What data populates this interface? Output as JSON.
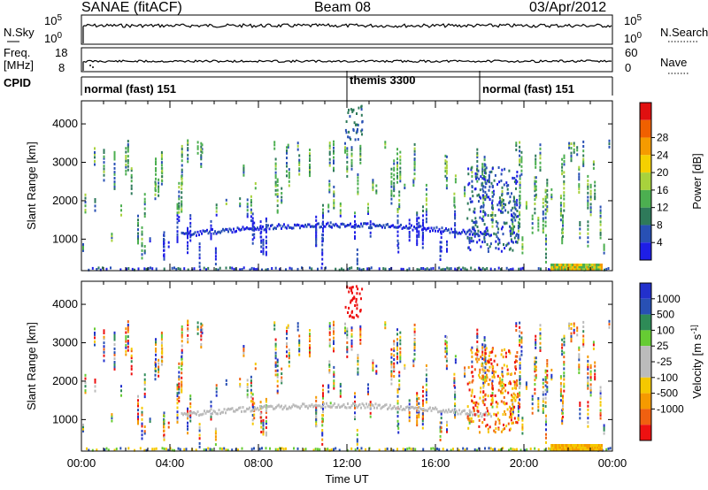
{
  "header": {
    "title": "SANAE (fitACF)",
    "beam": "Beam 08",
    "date": "03/Apr/2012"
  },
  "panels": {
    "nsky": {
      "left_label": "N.Sky",
      "left_ticks": [
        "10^5",
        "10^0"
      ],
      "right_ticks": [
        "10^5",
        "10^0"
      ],
      "right_label": "N.Search"
    },
    "freq": {
      "left_label_1": "Freq.",
      "left_label_2": "[MHz]",
      "left_ticks": [
        "18",
        "8"
      ],
      "right_ticks": [
        "60",
        "0"
      ],
      "right_label": "Nave"
    },
    "cpid": {
      "label": "CPID",
      "segments": [
        {
          "label": "normal (fast) 151",
          "start": 0
        },
        {
          "label": "themis 3300",
          "start": 12
        },
        {
          "label": "normal (fast) 151",
          "start": 18
        }
      ]
    }
  },
  "colors": {
    "power": [
      "#1e1ee6",
      "#2850b4",
      "#2e7a5a",
      "#4caf50",
      "#a8d23c",
      "#f5d000",
      "#f59b00",
      "#f06000",
      "#e01010"
    ],
    "velocity": [
      "#ee1111",
      "#f06010",
      "#f59a00",
      "#f5c800",
      "#bbbbbb",
      "#bbbbbb",
      "#66cc33",
      "#2e8b57",
      "#2850b4",
      "#2230cc"
    ]
  },
  "chart_data": [
    {
      "type": "heatmap",
      "name": "power",
      "xlabel": "",
      "ylabel": "Slant Range [km]",
      "xlim": [
        0,
        24
      ],
      "ylim": [
        180,
        4600
      ],
      "yticks": [
        "1000",
        "2000",
        "3000",
        "4000"
      ],
      "colorbar": {
        "label": "Power [dB]",
        "ticks": [
          "4",
          "8",
          "12",
          "16",
          "20",
          "24",
          "28"
        ]
      }
    },
    {
      "type": "heatmap",
      "name": "velocity",
      "xlabel": "Time UT",
      "ylabel": "Slant Range [km]",
      "xlim": [
        0,
        24
      ],
      "ylim": [
        180,
        4600
      ],
      "xticks": [
        "00:00",
        "04:00",
        "08:00",
        "12:00",
        "16:00",
        "20:00",
        "00:00"
      ],
      "yticks": [
        "1000",
        "2000",
        "3000",
        "4000"
      ],
      "colorbar": {
        "label": "Velocity [m s^-1]",
        "ticks": [
          "1000",
          "500",
          "100",
          "25",
          "-25",
          "-100",
          "-500",
          "-1000"
        ]
      }
    }
  ]
}
